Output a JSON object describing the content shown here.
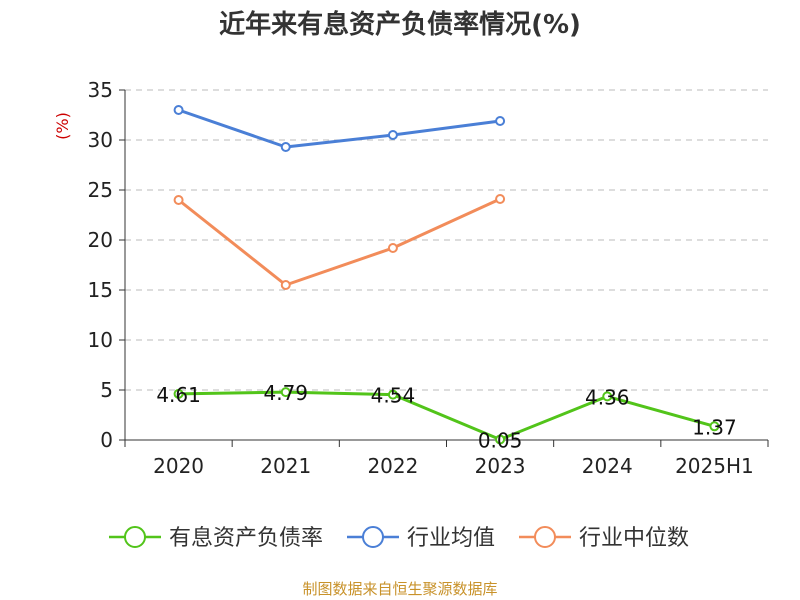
{
  "chart_data": {
    "type": "line",
    "title": "近年来有息资产负债率情况(%)",
    "ylabel": "(%)",
    "xlabel": "",
    "categories": [
      "2020",
      "2021",
      "2022",
      "2023",
      "2024",
      "2025H1"
    ],
    "ylim": [
      0,
      35
    ],
    "yticks": [
      0,
      5,
      10,
      15,
      20,
      25,
      30,
      35
    ],
    "grid": true,
    "legend_position": "bottom",
    "series": [
      {
        "name": "有息资产负债率",
        "color": "#52c41a",
        "values": [
          4.61,
          4.79,
          4.54,
          0.05,
          4.36,
          1.37
        ],
        "labels": [
          "4.61",
          "4.79",
          "4.54",
          "0.05",
          "4.36",
          "1.37"
        ]
      },
      {
        "name": "行业均值",
        "color": "#4a7fd6",
        "values": [
          33.0,
          29.3,
          30.5,
          31.9,
          null,
          null
        ]
      },
      {
        "name": "行业中位数",
        "color": "#f28c5a",
        "values": [
          24.0,
          15.5,
          19.2,
          24.1,
          null,
          null
        ]
      }
    ]
  },
  "footer": "制图数据来自恒生聚源数据库"
}
